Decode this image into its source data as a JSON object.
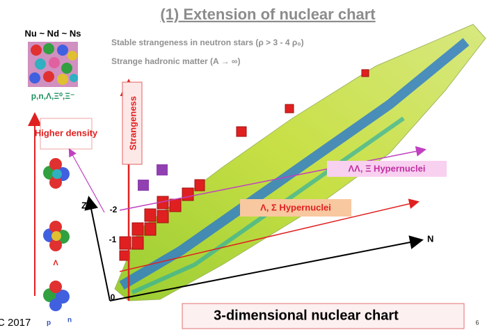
{
  "title": "(1) Extension of nuclear chart",
  "left_panel": {
    "heading": "Nu ~ Nd ~ Ns",
    "particles": "p,n,Λ,Ξ⁰,Ξ⁻",
    "density_label": "Higher density",
    "lambda_label": "Λ",
    "proton_label": "p",
    "neutron_label": "n"
  },
  "notes": [
    "Stable strangeness in neutron stars (ρ > 3 - 4 ρ₀)",
    "Strange hadronic matter (A → ∞)"
  ],
  "axes": {
    "vertical": "Strangeness",
    "z": "Z",
    "n": "N",
    "levels": [
      "-2",
      "-1",
      "0"
    ]
  },
  "regions": {
    "double": "ΛΛ, Ξ Hypernuclei",
    "single": "Λ, Σ Hypernuclei"
  },
  "footer": {
    "caption": "3-dimensional nuclear chart",
    "page": "6",
    "credit": "C 2017"
  }
}
